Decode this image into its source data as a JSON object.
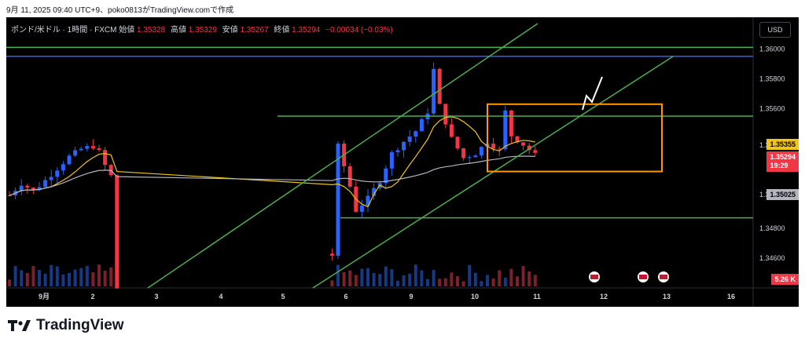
{
  "caption": "9月 11, 2025 09:40 UTC+9、poko0813がTradingView.comで作成",
  "header": {
    "symbol": "ポンド/米ドル · 1時間 · FXCM",
    "open_label": "始値",
    "open": "1.35328",
    "high_label": "高値",
    "high": "1.35329",
    "low_label": "安値",
    "low": "1.35267",
    "close_label": "終値",
    "close": "1.35294",
    "change": "−0.00034 (−0.03%)"
  },
  "currency_button": "USD",
  "price_tags": {
    "yellow": "1.35355",
    "red_price": "1.35294",
    "red_countdown": "19:29",
    "gray": "1.35025",
    "volume": "5.26 K"
  },
  "brand": "TradingView",
  "colors": {
    "up": "#2962ff",
    "down": "#f23645",
    "ma_yellow": "#f0c419",
    "ma_gray": "#b2b5be",
    "green": "#4caf50",
    "blue": "#2962ff",
    "orange": "#ff9800"
  },
  "chart_data": {
    "type": "candlestick",
    "y_ticks": [
      "1.36000",
      "1.35800",
      "1.35600",
      "1.35355",
      "1.35025",
      "1.34800",
      "1.34600"
    ],
    "ylim": [
      1.3448,
      1.3608
    ],
    "x_ticks": [
      "9月",
      "2",
      "3",
      "4",
      "5",
      "6",
      "9",
      "10",
      "11",
      "12",
      "13",
      "16"
    ],
    "close_path": [
      [
        0,
        1.3502
      ],
      [
        2,
        1.351
      ],
      [
        4,
        1.3505
      ],
      [
        6,
        1.3512
      ],
      [
        8,
        1.352
      ],
      [
        10,
        1.3528
      ],
      [
        12,
        1.3533
      ],
      [
        14,
        1.3535
      ],
      [
        15,
        1.3531
      ],
      [
        16,
        1.3522
      ],
      [
        17,
        1.3515
      ],
      [
        18,
        1.344
      ],
      [
        54,
        1.3462
      ],
      [
        55,
        1.3535
      ],
      [
        57,
        1.3508
      ],
      [
        58,
        1.3492
      ],
      [
        60,
        1.35
      ],
      [
        62,
        1.3512
      ],
      [
        64,
        1.353
      ],
      [
        66,
        1.3538
      ],
      [
        68,
        1.3545
      ],
      [
        70,
        1.3558
      ],
      [
        71,
        1.3586
      ],
      [
        72,
        1.3562
      ],
      [
        74,
        1.354
      ],
      [
        76,
        1.3527
      ],
      [
        78,
        1.353
      ],
      [
        80,
        1.3538
      ],
      [
        82,
        1.3532
      ],
      [
        83,
        1.3558
      ],
      [
        84,
        1.3542
      ],
      [
        86,
        1.3536
      ],
      [
        88,
        1.3529
      ]
    ],
    "horizontal_lines": [
      {
        "color": "blue",
        "price": 1.3595
      },
      {
        "color": "green",
        "price": 1.3601
      },
      {
        "color": "green",
        "price": 1.3555
      },
      {
        "color": "green",
        "price": 1.3487
      }
    ],
    "rectangle": {
      "color": "orange",
      "price_top": 1.3563,
      "price_bottom": 1.3518
    },
    "events": [
      "US",
      "UK",
      "US"
    ]
  }
}
